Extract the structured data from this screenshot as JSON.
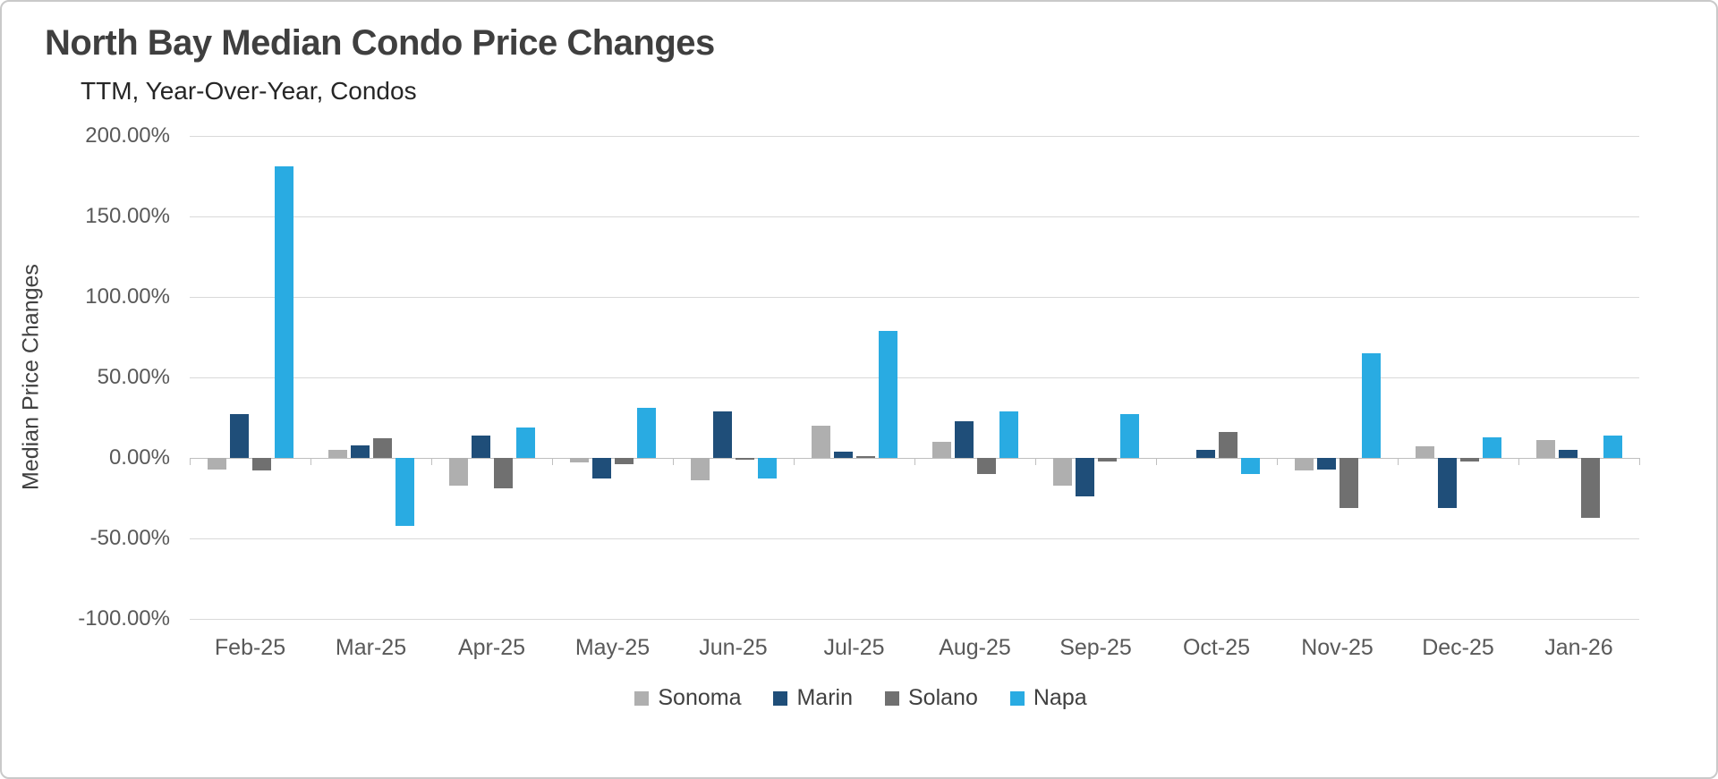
{
  "chart_data": {
    "type": "bar",
    "title": "North Bay Median Condo Price Changes",
    "subtitle": "TTM, Year-Over-Year, Condos",
    "ylabel": "Median Price Changes",
    "xlabel": "",
    "ylim": [
      -100,
      200
    ],
    "grid": true,
    "legend_position": "bottom",
    "yticks": [
      {
        "value": 200,
        "label": "200.00%"
      },
      {
        "value": 150,
        "label": "150.00%"
      },
      {
        "value": 100,
        "label": "100.00%"
      },
      {
        "value": 50,
        "label": "50.00%"
      },
      {
        "value": 0,
        "label": "0.00%"
      },
      {
        "value": -50,
        "label": "-50.00%"
      },
      {
        "value": -100,
        "label": "-100.00%"
      }
    ],
    "categories": [
      "Feb-25",
      "Mar-25",
      "Apr-25",
      "May-25",
      "Jun-25",
      "Jul-25",
      "Aug-25",
      "Sep-25",
      "Oct-25",
      "Nov-25",
      "Dec-25",
      "Jan-26"
    ],
    "series": [
      {
        "name": "Sonoma",
        "color": "#AFAFAF",
        "values": [
          -7,
          5,
          -17,
          -3,
          -14,
          20,
          10,
          -17,
          0,
          -8,
          7,
          11
        ]
      },
      {
        "name": "Marin",
        "color": "#1F4E79",
        "values": [
          27,
          8,
          14,
          -13,
          29,
          4,
          23,
          -24,
          5,
          -7,
          -31,
          5
        ]
      },
      {
        "name": "Solano",
        "color": "#707070",
        "values": [
          -8,
          12,
          -19,
          -4,
          -1,
          1,
          -10,
          -2,
          16,
          -31,
          -2,
          -37
        ]
      },
      {
        "name": "Napa",
        "color": "#29ABE2",
        "values": [
          181,
          -42,
          19,
          31,
          -13,
          79,
          29,
          27,
          -10,
          65,
          13,
          14
        ]
      }
    ]
  },
  "colors": {
    "grid": "#D9D9D9",
    "zero_line": "#BFBFBF",
    "axis_text": "#595959",
    "title_text": "#3F3F3F",
    "background": "#FFFFFF",
    "border": "#C9C9C9"
  }
}
